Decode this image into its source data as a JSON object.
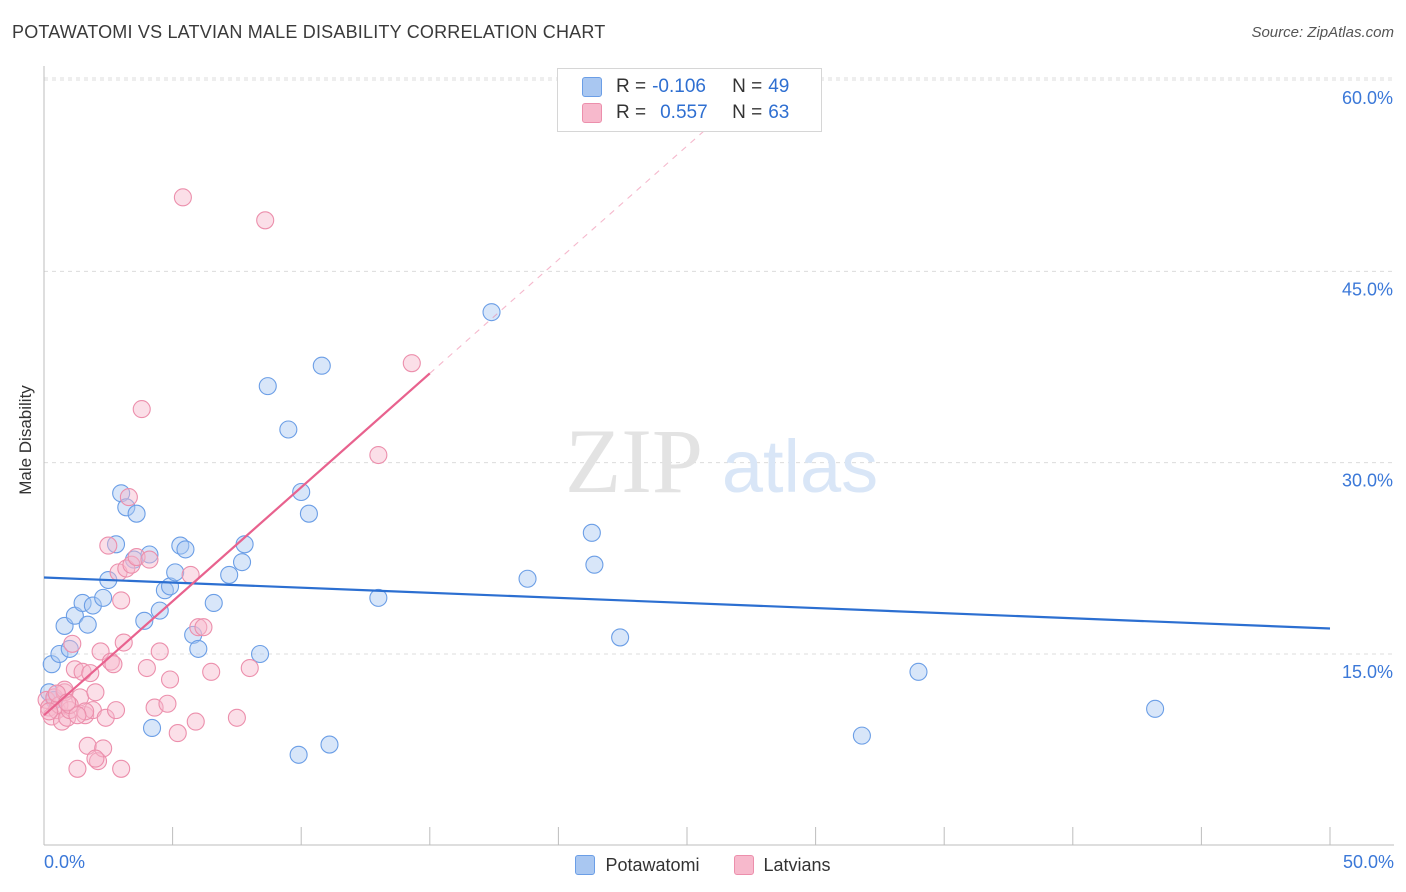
{
  "title": "POTAWATOMI VS LATVIAN MALE DISABILITY CORRELATION CHART",
  "source": "Source: ZipAtlas.com",
  "watermark": {
    "zip": "ZIP",
    "atlas": "atlas"
  },
  "legend": {
    "rows": [
      {
        "r_label": "R =",
        "r_value": "-0.106",
        "n_label": "N =",
        "n_value": "49",
        "color": "#a9c7f1"
      },
      {
        "r_label": "R =",
        "r_value": "0.557",
        "n_label": "N =",
        "n_value": "63",
        "color": "#f7b9cc"
      }
    ]
  },
  "chart_data": {
    "type": "scatter",
    "title": "POTAWATOMI VS LATVIAN MALE DISABILITY CORRELATION CHART",
    "xlabel": "",
    "ylabel": "Male Disability",
    "xlim": [
      0,
      50
    ],
    "ylim": [
      0,
      61
    ],
    "x_tick_labels": [
      "0.0%",
      "50.0%"
    ],
    "y_ticks": [
      15,
      30,
      45,
      60
    ],
    "y_tick_labels": [
      "15.0%",
      "30.0%",
      "45.0%",
      "60.0%"
    ],
    "grid": true,
    "series": [
      {
        "name": "Potawatomi",
        "color": "#6b9ee6",
        "fill": "#a9c7f1",
        "line_color": "#2c6fd1",
        "trend": {
          "x": [
            0,
            50
          ],
          "y": [
            21.0,
            17.0
          ]
        },
        "points": [
          [
            0.2,
            12.0
          ],
          [
            0.3,
            14.2
          ],
          [
            0.6,
            15.0
          ],
          [
            0.8,
            17.2
          ],
          [
            1.0,
            15.4
          ],
          [
            1.2,
            18.0
          ],
          [
            1.5,
            19.0
          ],
          [
            1.7,
            17.3
          ],
          [
            1.9,
            18.8
          ],
          [
            2.3,
            19.4
          ],
          [
            2.5,
            20.8
          ],
          [
            2.8,
            23.6
          ],
          [
            3.0,
            27.6
          ],
          [
            3.2,
            26.5
          ],
          [
            3.5,
            22.4
          ],
          [
            3.6,
            26.0
          ],
          [
            3.9,
            17.6
          ],
          [
            4.1,
            22.8
          ],
          [
            4.2,
            9.2
          ],
          [
            4.5,
            18.4
          ],
          [
            4.7,
            20.0
          ],
          [
            4.9,
            20.3
          ],
          [
            5.1,
            21.4
          ],
          [
            5.3,
            23.5
          ],
          [
            5.5,
            23.2
          ],
          [
            5.8,
            16.5
          ],
          [
            6.0,
            15.4
          ],
          [
            6.6,
            19.0
          ],
          [
            7.2,
            21.2
          ],
          [
            7.7,
            22.2
          ],
          [
            7.8,
            23.6
          ],
          [
            8.4,
            15.0
          ],
          [
            8.7,
            36.0
          ],
          [
            9.5,
            32.6
          ],
          [
            9.9,
            7.1
          ],
          [
            10.0,
            27.7
          ],
          [
            10.3,
            26.0
          ],
          [
            10.8,
            37.6
          ],
          [
            11.1,
            7.9
          ],
          [
            13.0,
            19.4
          ],
          [
            17.4,
            41.8
          ],
          [
            18.8,
            20.9
          ],
          [
            21.3,
            24.5
          ],
          [
            21.4,
            22.0
          ],
          [
            22.4,
            16.3
          ],
          [
            31.8,
            8.6
          ],
          [
            34.0,
            13.6
          ],
          [
            43.2,
            10.7
          ],
          [
            0.4,
            11.4
          ]
        ]
      },
      {
        "name": "Latvians",
        "color": "#ec8fac",
        "fill": "#f7b9cc",
        "line_color": "#e8628e",
        "trend": {
          "x": [
            0,
            15
          ],
          "y": [
            10.2,
            37.0
          ]
        },
        "trend_ext": {
          "x": [
            15,
            26.5
          ],
          "y": [
            37.0,
            57.5
          ]
        },
        "points": [
          [
            0.1,
            11.4
          ],
          [
            0.2,
            10.8
          ],
          [
            0.3,
            10.1
          ],
          [
            0.4,
            11.6
          ],
          [
            0.5,
            10.6
          ],
          [
            0.6,
            11.0
          ],
          [
            0.7,
            9.7
          ],
          [
            0.8,
            12.0
          ],
          [
            0.9,
            10.0
          ],
          [
            1.0,
            10.6
          ],
          [
            1.1,
            15.8
          ],
          [
            1.2,
            13.8
          ],
          [
            1.3,
            6.0
          ],
          [
            1.4,
            11.6
          ],
          [
            1.5,
            13.6
          ],
          [
            1.6,
            10.2
          ],
          [
            1.7,
            7.8
          ],
          [
            1.8,
            13.5
          ],
          [
            1.9,
            10.6
          ],
          [
            2.0,
            12.0
          ],
          [
            2.1,
            6.6
          ],
          [
            2.2,
            15.2
          ],
          [
            2.3,
            7.6
          ],
          [
            2.4,
            10.0
          ],
          [
            2.6,
            14.4
          ],
          [
            2.7,
            14.2
          ],
          [
            2.8,
            10.6
          ],
          [
            2.9,
            21.4
          ],
          [
            3.0,
            19.2
          ],
          [
            3.1,
            15.9
          ],
          [
            3.2,
            21.7
          ],
          [
            3.3,
            27.3
          ],
          [
            3.4,
            22.0
          ],
          [
            3.6,
            22.6
          ],
          [
            3.8,
            34.2
          ],
          [
            4.0,
            13.9
          ],
          [
            4.1,
            22.4
          ],
          [
            4.3,
            10.8
          ],
          [
            4.5,
            15.2
          ],
          [
            4.8,
            11.1
          ],
          [
            4.9,
            13.0
          ],
          [
            5.2,
            8.8
          ],
          [
            5.4,
            50.8
          ],
          [
            5.7,
            21.2
          ],
          [
            5.9,
            9.7
          ],
          [
            6.0,
            17.1
          ],
          [
            6.2,
            17.1
          ],
          [
            6.5,
            13.6
          ],
          [
            7.5,
            10.0
          ],
          [
            8.0,
            13.9
          ],
          [
            8.6,
            49.0
          ],
          [
            13.0,
            30.6
          ],
          [
            14.3,
            37.8
          ],
          [
            2.5,
            23.5
          ],
          [
            1.0,
            11.0
          ],
          [
            0.8,
            12.2
          ],
          [
            3.0,
            6.0
          ],
          [
            2.0,
            6.8
          ],
          [
            0.5,
            11.9
          ],
          [
            1.6,
            10.5
          ],
          [
            1.3,
            10.2
          ],
          [
            0.2,
            10.5
          ],
          [
            0.9,
            11.2
          ]
        ]
      }
    ]
  },
  "bottom_legend": [
    {
      "label": "Potawatomi",
      "color": "#a9c7f1"
    },
    {
      "label": "Latvians",
      "color": "#f7b9cc"
    }
  ]
}
